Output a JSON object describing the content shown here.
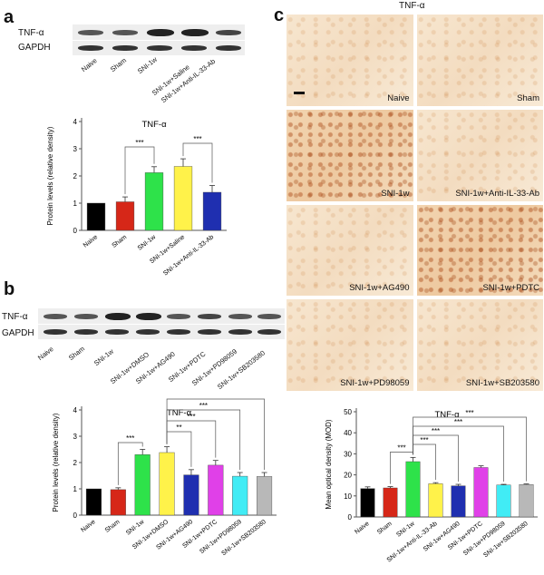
{
  "panels": {
    "a": "a",
    "b": "b",
    "c": "c"
  },
  "micrograph_title": "TNF-α",
  "blot_a": {
    "rows": [
      "TNF-α",
      "GAPDH"
    ],
    "lanes": [
      "Naive",
      "Sham",
      "SNI-1w",
      "SNI-1w+Saline",
      "SNI-1w+Anti-IL-33-Ab"
    ]
  },
  "blot_b": {
    "rows": [
      "TNF-α",
      "GAPDH"
    ],
    "lanes": [
      "Naive",
      "Sham",
      "SNI-1w",
      "SNI-1w+DMSO",
      "SNI-1w+AG490",
      "SNI-1w+PDTC",
      "SNI-1w+PD98059",
      "SNI-1w+SB203580"
    ]
  },
  "micrographs": [
    {
      "label": "Naive"
    },
    {
      "label": "Sham"
    },
    {
      "label": "SNI-1w"
    },
    {
      "label": "SNI-1w+Anti-IL-33-Ab"
    },
    {
      "label": "SNI-1w+AG490"
    },
    {
      "label": "SNI-1w+PDTC"
    },
    {
      "label": "SNI-1w+PD98059"
    },
    {
      "label": "SNI-1w+SB203580"
    }
  ],
  "chart_data": [
    {
      "type": "bar",
      "title": "TNF-α",
      "ylabel": "Protein levels (relative density)",
      "ylim": [
        0,
        4
      ],
      "yticks": [
        0,
        1,
        2,
        3,
        4
      ],
      "categories": [
        "Naive",
        "Sham",
        "SNI-1w",
        "SNI-1w+Saline",
        "SNI-1w+Anti-IL-33-Ab"
      ],
      "values": [
        1.0,
        1.05,
        2.12,
        2.35,
        1.4
      ],
      "errors": [
        0.0,
        0.18,
        0.22,
        0.28,
        0.25
      ],
      "colors": [
        "#000000",
        "#d62718",
        "#2ee24a",
        "#fff24a",
        "#1f2fb0"
      ],
      "significance": [
        {
          "from": 1,
          "to": 2,
          "label": "***"
        },
        {
          "from": 3,
          "to": 4,
          "label": "***"
        }
      ]
    },
    {
      "type": "bar",
      "title": "TNF-α",
      "ylabel": "Protein levels (relative density)",
      "ylim": [
        0,
        4
      ],
      "yticks": [
        0,
        1,
        2,
        3,
        4
      ],
      "categories": [
        "Naive",
        "Sham",
        "SNI-1w",
        "SNI-1w+DMSO",
        "SNI-1w+AG490",
        "SNI-1w+PDTC",
        "SNI-1w+PD98059",
        "SNI-1w+SB203580"
      ],
      "values": [
        1.0,
        0.97,
        2.3,
        2.38,
        1.53,
        1.9,
        1.48,
        1.47
      ],
      "errors": [
        0.0,
        0.07,
        0.2,
        0.22,
        0.2,
        0.18,
        0.14,
        0.15
      ],
      "colors": [
        "#000000",
        "#d62718",
        "#2ee24a",
        "#fff24a",
        "#1f2fb0",
        "#e040e8",
        "#41ecf5",
        "#b8b8b8"
      ],
      "significance": [
        {
          "from": 1,
          "to": 2,
          "label": "***"
        },
        {
          "from": 3,
          "to": 4,
          "label": "**"
        },
        {
          "from": 3,
          "to": 5,
          "label": "***"
        },
        {
          "from": 3,
          "to": 6,
          "label": "***"
        },
        {
          "from": 3,
          "to": 7,
          "label": "***"
        }
      ]
    },
    {
      "type": "bar",
      "title": "TNF-α",
      "ylabel": "Mean optical density (MOD)",
      "ylim": [
        0,
        50
      ],
      "yticks": [
        0,
        10,
        20,
        30,
        40,
        50
      ],
      "categories": [
        "Naive",
        "Sham",
        "SNI-1w",
        "SNI-1w+Anti-IL-33-Ab",
        "SNI-1w+AG490",
        "SNI-1w+PDTC",
        "SNI-1w+PD98059",
        "SNI-1w+SB203580"
      ],
      "values": [
        13.5,
        13.8,
        26.3,
        15.8,
        14.8,
        23.5,
        15.2,
        15.4
      ],
      "errors": [
        0.8,
        0.6,
        2.0,
        0.5,
        0.7,
        0.8,
        0.3,
        0.3
      ],
      "colors": [
        "#000000",
        "#d62718",
        "#2ee24a",
        "#fff24a",
        "#1f2fb0",
        "#e040e8",
        "#41ecf5",
        "#b8b8b8"
      ],
      "significance": [
        {
          "from": 1,
          "to": 2,
          "label": "***"
        },
        {
          "from": 2,
          "to": 3,
          "label": "***"
        },
        {
          "from": 2,
          "to": 4,
          "label": "***"
        },
        {
          "from": 2,
          "to": 6,
          "label": "***"
        },
        {
          "from": 2,
          "to": 7,
          "label": "***"
        }
      ]
    }
  ]
}
